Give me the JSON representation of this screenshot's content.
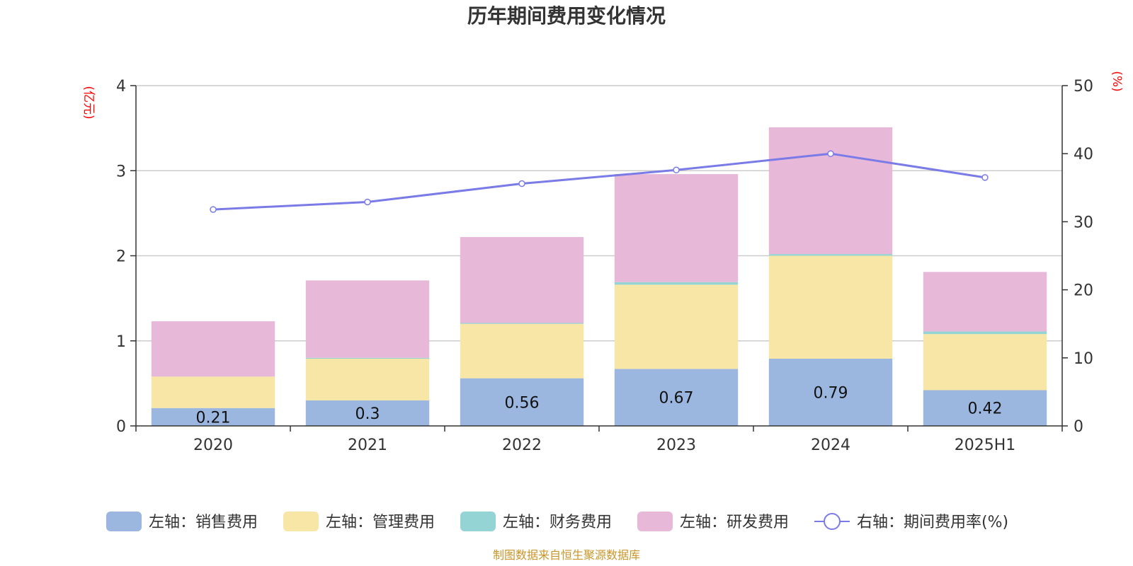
{
  "chart_data": {
    "type": "bar",
    "stacked": true,
    "title": "历年期间费用变化情况",
    "categories": [
      "2020",
      "2021",
      "2022",
      "2023",
      "2024",
      "2025H1"
    ],
    "left_axis": {
      "unit": "(亿元)",
      "ylim": [
        0,
        4
      ],
      "ticks": [
        "0",
        "1",
        "2",
        "3",
        "4"
      ]
    },
    "right_axis": {
      "unit": "(%)",
      "ylim": [
        0,
        50
      ],
      "ticks": [
        "0",
        "10",
        "20",
        "30",
        "40",
        "50"
      ]
    },
    "series": [
      {
        "name": "左轴：销售费用",
        "axis": "left",
        "color": "#9bb7e0",
        "values": [
          0.21,
          0.3,
          0.56,
          0.67,
          0.79,
          0.42
        ],
        "labels": [
          "0.21",
          "0.3",
          "0.56",
          "0.67",
          "0.79",
          "0.42"
        ]
      },
      {
        "name": "左轴：管理费用",
        "axis": "left",
        "color": "#f7e6a6",
        "values": [
          0.37,
          0.49,
          0.64,
          0.99,
          1.21,
          0.66
        ]
      },
      {
        "name": "左轴：财务费用",
        "axis": "left",
        "color": "#94d4d4",
        "values": [
          0.0,
          0.01,
          0.01,
          0.03,
          0.02,
          0.03
        ]
      },
      {
        "name": "左轴：研发费用",
        "axis": "left",
        "color": "#e8b8d8",
        "values": [
          0.65,
          0.91,
          1.01,
          1.27,
          1.49,
          0.7
        ]
      },
      {
        "name": "右轴：期间费用率(%)",
        "axis": "right",
        "type": "line",
        "color": "#7b7be8",
        "values": [
          31.8,
          32.9,
          35.6,
          37.6,
          40.0,
          36.5
        ]
      }
    ],
    "grid": true,
    "legend": "bottom"
  },
  "source": "制图数据来自恒生聚源数据库"
}
